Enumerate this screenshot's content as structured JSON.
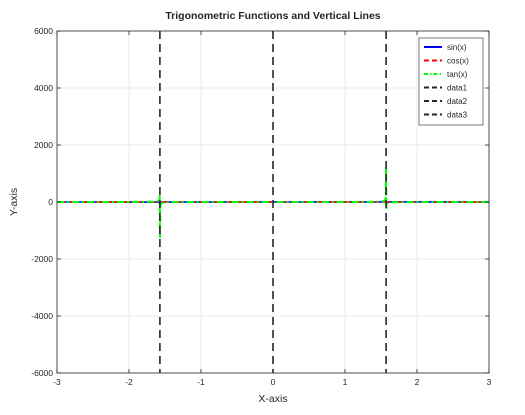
{
  "chart_data": {
    "type": "line",
    "title": "Trigonometric Functions and Vertical Lines",
    "xlabel": "X-axis",
    "ylabel": "Y-axis",
    "xlim": [
      -3,
      3
    ],
    "ylim": [
      -6000,
      6000
    ],
    "x_ticks": [
      -3,
      -2,
      -1,
      0,
      1,
      2,
      3
    ],
    "x_tick_labels": [
      "-3",
      "-2",
      "-1",
      "0",
      "1",
      "2",
      "3"
    ],
    "y_ticks": [
      -6000,
      -4000,
      -2000,
      0,
      2000,
      4000,
      6000
    ],
    "y_tick_labels": [
      "-6000",
      "-4000",
      "-2000",
      "0",
      "2000",
      "4000",
      "6000"
    ],
    "grid": true,
    "legend_position": "top-right",
    "series": [
      {
        "name": "sin(x)",
        "color": "#0000ff",
        "style": "solid",
        "function": "sin",
        "x_range": [
          -3,
          3
        ]
      },
      {
        "name": "cos(x)",
        "color": "#ff0000",
        "style": "dashed",
        "function": "cos",
        "x_range": [
          -3,
          3
        ]
      },
      {
        "name": "tan(x)",
        "color": "#00ff00",
        "style": "dashdot",
        "function": "tan",
        "x_range": [
          -3,
          3
        ]
      },
      {
        "name": "data1",
        "color": "#262626",
        "style": "dashed",
        "vertical_x": -1.5708
      },
      {
        "name": "data2",
        "color": "#262626",
        "style": "dashed",
        "vertical_x": 0
      },
      {
        "name": "data3",
        "color": "#262626",
        "style": "dashed",
        "vertical_x": 1.5708
      }
    ]
  }
}
